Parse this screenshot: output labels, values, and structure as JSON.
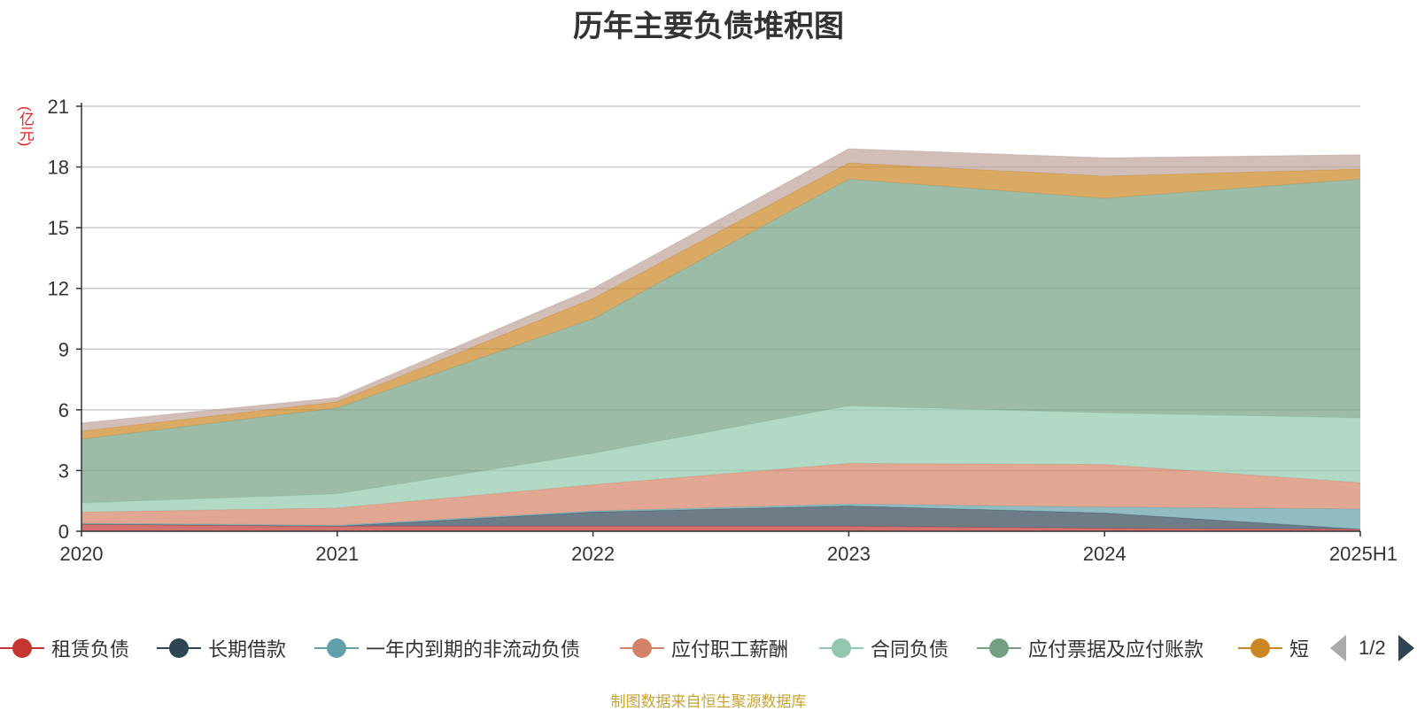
{
  "title": "历年主要负债堆积图",
  "unit_label": "(亿元)",
  "footer": "制图数据来自恒生聚源数据库",
  "pager": {
    "text": "1/2"
  },
  "legend": [
    {
      "name": "租赁负债",
      "color": "#c23531"
    },
    {
      "name": "长期借款",
      "color": "#2f4554"
    },
    {
      "name": "一年内到期的非流动负债",
      "color": "#61a0a8"
    },
    {
      "name": "应付职工薪酬",
      "color": "#d48265"
    },
    {
      "name": "合同负债",
      "color": "#91c7ae"
    },
    {
      "name": "应付票据及应付账款",
      "color": "#749f83"
    },
    {
      "name": "短",
      "color": "#ca8622"
    }
  ],
  "chart_data": {
    "type": "area",
    "stacked": true,
    "x": [
      "2020",
      "2021",
      "2022",
      "2023",
      "2024",
      "2025H1"
    ],
    "ylim": [
      0,
      21
    ],
    "yticks": [
      0,
      3,
      6,
      9,
      12,
      15,
      18,
      21
    ],
    "grid": true,
    "series": [
      {
        "name": "租赁负债",
        "color": "#c23531",
        "values": [
          0.35,
          0.25,
          0.25,
          0.25,
          0.15,
          0.1
        ]
      },
      {
        "name": "长期借款",
        "color": "#2f4554",
        "values": [
          0,
          0,
          0.7,
          1.0,
          0.75,
          0
        ]
      },
      {
        "name": "一年内到期的非流动负债",
        "color": "#61a0a8",
        "values": [
          0.05,
          0.05,
          0.05,
          0.1,
          0.3,
          1.0
        ]
      },
      {
        "name": "应付职工薪酬",
        "color": "#d48265",
        "values": [
          0.55,
          0.85,
          1.3,
          2.0,
          2.1,
          1.3
        ]
      },
      {
        "name": "合同负债",
        "color": "#91c7ae",
        "values": [
          0.45,
          0.7,
          1.55,
          2.85,
          2.55,
          3.2
        ]
      },
      {
        "name": "应付票据及应付账款",
        "color": "#749f83",
        "values": [
          3.15,
          4.25,
          6.65,
          11.2,
          10.6,
          11.8
        ]
      },
      {
        "name": "短",
        "color": "#ca8622",
        "values": [
          0.4,
          0.3,
          1.0,
          0.8,
          1.1,
          0.5
        ]
      },
      {
        "name": "",
        "color": "#bda29a",
        "values": [
          0.4,
          0.2,
          0.5,
          0.7,
          0.9,
          0.7
        ]
      }
    ]
  }
}
